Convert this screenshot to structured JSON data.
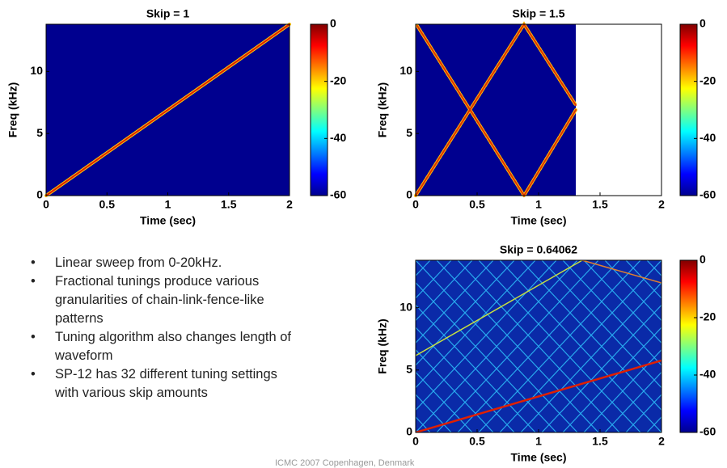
{
  "chart_data": [
    {
      "type": "spectrogram",
      "title": "Skip = 1",
      "x_label": "Time (sec)",
      "y_label": "Freq (kHz)",
      "xlim": [
        0,
        2
      ],
      "xticks": [
        0,
        0.5,
        1,
        1.5,
        2
      ],
      "ylim": [
        0,
        13.8
      ],
      "yticks": [
        0,
        5,
        10
      ],
      "colorbar": {
        "lim": [
          -60,
          0
        ],
        "ticks": [
          -60,
          -40,
          -20,
          0
        ]
      }
    },
    {
      "type": "spectrogram",
      "title": "Skip = 1.5",
      "x_label": "Time (sec)",
      "y_label": "Freq (kHz)",
      "xlim": [
        0,
        2
      ],
      "xticks": [
        0,
        0.5,
        1,
        1.5,
        2
      ],
      "ylim": [
        0,
        13.8
      ],
      "yticks": [
        0,
        5,
        10
      ],
      "colorbar": {
        "lim": [
          -60,
          0
        ],
        "ticks": [
          -60,
          -40,
          -20,
          0
        ]
      }
    },
    {
      "type": "spectrogram",
      "title": "Skip = 0.64062",
      "x_label": "Time (sec)",
      "y_label": "Freq (kHz)",
      "xlim": [
        0,
        2
      ],
      "xticks": [
        0,
        0.5,
        1,
        1.5,
        2
      ],
      "ylim": [
        0,
        13.8
      ],
      "yticks": [
        0,
        5,
        10
      ],
      "colorbar": {
        "lim": [
          -60,
          0
        ],
        "ticks": [
          -60,
          -40,
          -20,
          0
        ]
      }
    }
  ],
  "bullets": [
    "Linear sweep from 0-20kHz.",
    "Fractional tunings produce various granularities of chain-link-fence-like patterns",
    "Tuning algorithm also changes length of waveform",
    "SP-12 has 32 different tuning settings with various skip amounts"
  ],
  "footer": "ICMC 2007 Copenhagen, Denmark"
}
